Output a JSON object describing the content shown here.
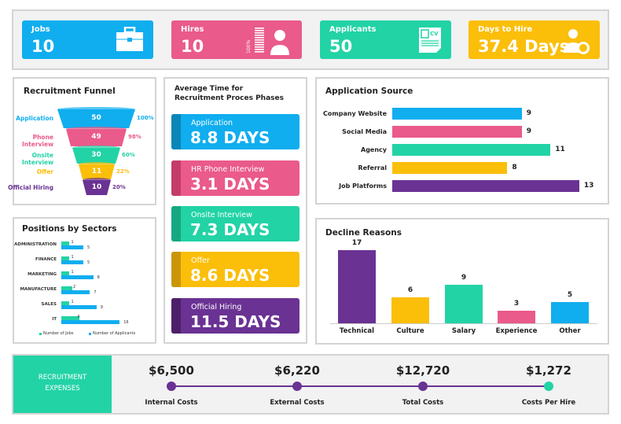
{
  "colors": {
    "blue": "#10aeef",
    "pink": "#ea5a8a",
    "teal": "#22d3a6",
    "yellow": "#fbbe09",
    "purple": "#6a3293"
  },
  "kpis": [
    {
      "label": "Jobs",
      "value": "10",
      "icon": "briefcase-icon"
    },
    {
      "label": "Hires",
      "value": "10",
      "icon": "hired-person-icon",
      "gauge": "100%"
    },
    {
      "label": "Applicants",
      "value": "50",
      "icon": "cv-document-icon"
    },
    {
      "label": "Days to Hire",
      "value": "37.4 Days",
      "icon": "person-clock-icon"
    }
  ],
  "funnel": {
    "title": "Recruitment Funnel",
    "stages": [
      {
        "label": "Application",
        "value": "50",
        "pct": "100%"
      },
      {
        "label": "Phone Interview",
        "value": "49",
        "pct": "98%"
      },
      {
        "label": "Onsite Interview",
        "value": "30",
        "pct": "60%"
      },
      {
        "label": "Offer",
        "value": "11",
        "pct": "22%"
      },
      {
        "label": "Official Hiring",
        "value": "10",
        "pct": "20%"
      }
    ]
  },
  "sectors": {
    "title": "Positions by Sectors",
    "legend": [
      "Number of Jobs",
      "Number of Applicants"
    ],
    "rows": [
      {
        "label": "ADMINISTRATION",
        "jobs": 1,
        "applicants": 5
      },
      {
        "label": "FINANCE",
        "jobs": 1,
        "applicants": 5
      },
      {
        "label": "MARKETING",
        "jobs": 1,
        "applicants": 8
      },
      {
        "label": "MANUFACTURE",
        "jobs": 2,
        "applicants": 7
      },
      {
        "label": "SALES",
        "jobs": 1,
        "applicants": 9
      },
      {
        "label": "IT",
        "jobs": 4,
        "applicants": 16
      }
    ]
  },
  "phases": {
    "title_line1": "Average Time for",
    "title_line2": "Recruitment Proces Phases",
    "items": [
      {
        "label": "Application",
        "value": "8.8 DAYS"
      },
      {
        "label": "HR Phone Interview",
        "value": "3.1 DAYS"
      },
      {
        "label": "Onsite Interview",
        "value": "7.3 DAYS"
      },
      {
        "label": "Offer",
        "value": "8.6 DAYS"
      },
      {
        "label": "Official Hiring",
        "value": "11.5 DAYS"
      }
    ]
  },
  "source": {
    "title": "Application Source",
    "rows": [
      {
        "label": "Company Website",
        "value": 9
      },
      {
        "label": "Social Media",
        "value": 9
      },
      {
        "label": "Agency",
        "value": 11
      },
      {
        "label": "Referral",
        "value": 8
      },
      {
        "label": "Job Platforms",
        "value": 13
      }
    ]
  },
  "decline": {
    "title": "Decline Reasons",
    "rows": [
      {
        "label": "Technical",
        "value": 17
      },
      {
        "label": "Culture",
        "value": 6
      },
      {
        "label": "Salary",
        "value": 9
      },
      {
        "label": "Experience",
        "value": 3
      },
      {
        "label": "Other",
        "value": 5
      }
    ]
  },
  "expenses": {
    "title_line1": "RECRUITMENT",
    "title_line2": "EXPENSES",
    "items": [
      {
        "label": "Internal Costs",
        "value": "$6,500"
      },
      {
        "label": "External Costs",
        "value": "$6,220"
      },
      {
        "label": "Total Costs",
        "value": "$12,720"
      },
      {
        "label": "Costs Per Hire",
        "value": "$1,272"
      }
    ]
  }
}
